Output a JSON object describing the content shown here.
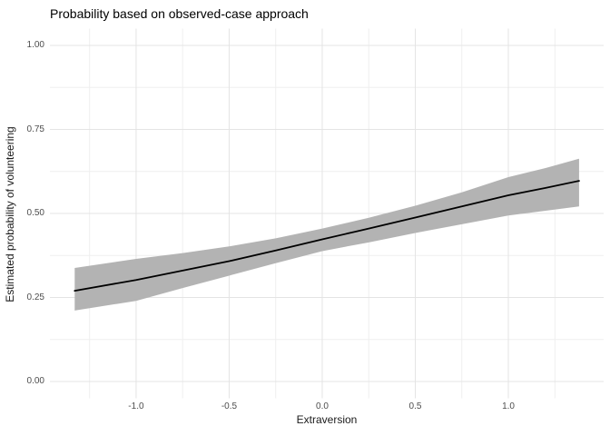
{
  "title": "Probability based on observed-case approach",
  "chart_data": {
    "type": "line",
    "title": "Probability based on observed-case approach",
    "xlabel": "Extraversion",
    "ylabel": "Estimated probability of volunteering",
    "xlim": [
      -1.463,
      1.512
    ],
    "ylim": [
      -0.05,
      1.05
    ],
    "grid": true,
    "legend": "none",
    "x_ticks": [
      -1.0,
      -0.5,
      0.0,
      0.5,
      1.0
    ],
    "x_tick_labels": [
      "-1.0",
      "-0.5",
      "0.0",
      "0.5",
      "1.0"
    ],
    "x_minor_ticks": [
      -1.25,
      -0.75,
      -0.25,
      0.25,
      0.75,
      1.25
    ],
    "y_ticks": [
      0.0,
      0.25,
      0.5,
      0.75,
      1.0
    ],
    "y_tick_labels": [
      "0.00",
      "0.25",
      "0.50",
      "0.75",
      "1.00"
    ],
    "y_minor_ticks": [
      0.125,
      0.375,
      0.625,
      0.875
    ],
    "x": [
      -1.33,
      -1.0,
      -0.75,
      -0.5,
      -0.25,
      0.0,
      0.25,
      0.5,
      0.75,
      1.0,
      1.2,
      1.38
    ],
    "series": [
      {
        "name": "fitted_probability",
        "values": [
          0.27,
          0.302,
          0.33,
          0.358,
          0.39,
          0.423,
          0.455,
          0.488,
          0.521,
          0.554,
          0.576,
          0.597
        ]
      },
      {
        "name": "ci_upper",
        "values": [
          0.338,
          0.365,
          0.382,
          0.402,
          0.426,
          0.455,
          0.487,
          0.523,
          0.563,
          0.608,
          0.635,
          0.663
        ]
      },
      {
        "name": "ci_lower",
        "values": [
          0.211,
          0.24,
          0.278,
          0.315,
          0.352,
          0.388,
          0.414,
          0.442,
          0.468,
          0.494,
          0.508,
          0.521
        ]
      }
    ],
    "colors": {
      "line": "#000000",
      "ribbon": "#b3b3b3",
      "grid_major": "#e4e4e4",
      "grid_minor": "#efefef",
      "axis_text": "#4d4d4d",
      "title_text": "#000000",
      "background": "#ffffff"
    }
  }
}
